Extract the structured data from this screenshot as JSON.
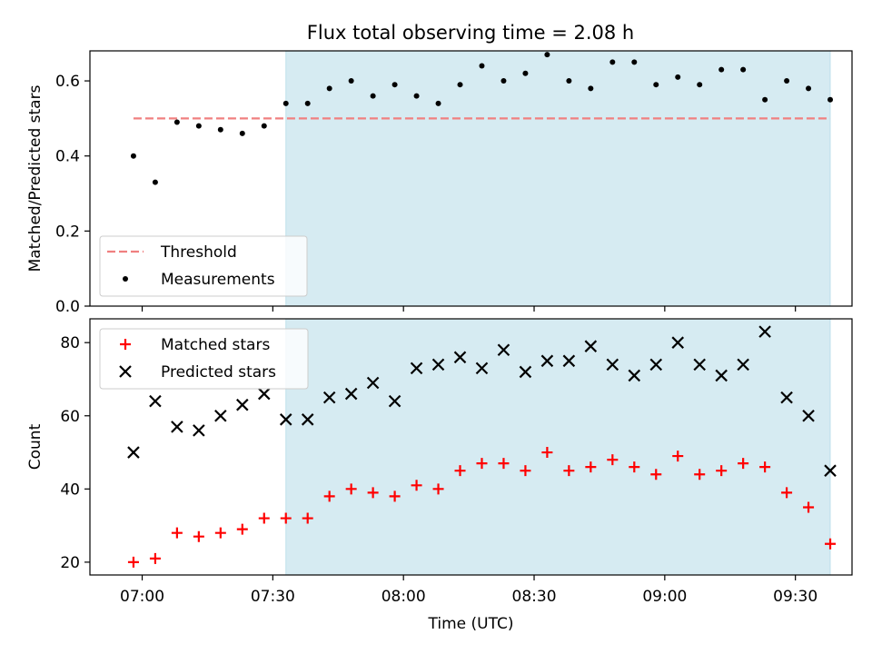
{
  "figure": {
    "title": "Flux total observing time = 2.08 h"
  },
  "colors": {
    "threshold": "#f08080",
    "measurements": "#000000",
    "matched": "#ff0000",
    "predicted": "#000000",
    "span": "#add8e6"
  },
  "chart_data": [
    {
      "type": "scatter",
      "title": "Flux total observing time = 2.08 h",
      "xlabel": "",
      "ylabel": "Matched/Predicted stars",
      "x_axis": "time (UTC)",
      "xlim": [
        "06:48",
        "09:43"
      ],
      "ylim": [
        0,
        0.68
      ],
      "yticks": [
        0.0,
        0.2,
        0.4,
        0.6
      ],
      "ytick_labels": [
        "0.0",
        "0.2",
        "0.4",
        "0.6"
      ],
      "grid": false,
      "legend_position": "lower-left",
      "shaded_span": {
        "start": "07:33",
        "end": "09:38"
      },
      "threshold": {
        "name": "Threshold",
        "value": 0.5,
        "x_range": [
          "06:58",
          "09:38"
        ],
        "style": "dashed"
      },
      "series": [
        {
          "name": "Measurements",
          "marker": "dot",
          "x": [
            "06:58",
            "07:03",
            "07:08",
            "07:13",
            "07:18",
            "07:23",
            "07:28",
            "07:33",
            "07:38",
            "07:43",
            "07:48",
            "07:53",
            "07:58",
            "08:03",
            "08:08",
            "08:13",
            "08:18",
            "08:23",
            "08:28",
            "08:33",
            "08:38",
            "08:43",
            "08:48",
            "08:53",
            "08:58",
            "09:03",
            "09:08",
            "09:13",
            "09:18",
            "09:23",
            "09:28",
            "09:33",
            "09:38"
          ],
          "values": [
            0.4,
            0.33,
            0.49,
            0.48,
            0.47,
            0.46,
            0.48,
            0.54,
            0.54,
            0.58,
            0.6,
            0.56,
            0.59,
            0.56,
            0.54,
            0.59,
            0.64,
            0.6,
            0.62,
            0.67,
            0.6,
            0.58,
            0.65,
            0.65,
            0.59,
            0.61,
            0.59,
            0.63,
            0.63,
            0.55,
            0.6,
            0.58,
            0.55
          ]
        }
      ]
    },
    {
      "type": "scatter",
      "title": "",
      "xlabel": "Time (UTC)",
      "ylabel": "Count",
      "xlim": [
        "06:48",
        "09:43"
      ],
      "xticks": [
        "07:00",
        "07:30",
        "08:00",
        "08:30",
        "09:00",
        "09:30"
      ],
      "ylim": [
        16.5,
        86.5
      ],
      "yticks": [
        20,
        40,
        60,
        80
      ],
      "grid": false,
      "legend_position": "top-left",
      "shaded_span": {
        "start": "07:33",
        "end": "09:38"
      },
      "series": [
        {
          "name": "Matched stars",
          "marker": "plus",
          "x": [
            "06:58",
            "07:03",
            "07:08",
            "07:13",
            "07:18",
            "07:23",
            "07:28",
            "07:33",
            "07:38",
            "07:43",
            "07:48",
            "07:53",
            "07:58",
            "08:03",
            "08:08",
            "08:13",
            "08:18",
            "08:23",
            "08:28",
            "08:33",
            "08:38",
            "08:43",
            "08:48",
            "08:53",
            "08:58",
            "09:03",
            "09:08",
            "09:13",
            "09:18",
            "09:23",
            "09:28",
            "09:33",
            "09:38"
          ],
          "values": [
            20,
            21,
            28,
            27,
            28,
            29,
            32,
            32,
            32,
            38,
            40,
            39,
            38,
            41,
            40,
            45,
            47,
            47,
            45,
            50,
            45,
            46,
            48,
            46,
            44,
            49,
            44,
            45,
            47,
            46,
            39,
            35,
            25
          ]
        },
        {
          "name": "Predicted stars",
          "marker": "x",
          "x": [
            "06:58",
            "07:03",
            "07:08",
            "07:13",
            "07:18",
            "07:23",
            "07:28",
            "07:33",
            "07:38",
            "07:43",
            "07:48",
            "07:53",
            "07:58",
            "08:03",
            "08:08",
            "08:13",
            "08:18",
            "08:23",
            "08:28",
            "08:33",
            "08:38",
            "08:43",
            "08:48",
            "08:53",
            "08:58",
            "09:03",
            "09:08",
            "09:13",
            "09:18",
            "09:23",
            "09:28",
            "09:33",
            "09:38"
          ],
          "values": [
            50,
            64,
            57,
            56,
            60,
            63,
            66,
            59,
            59,
            65,
            66,
            69,
            64,
            73,
            74,
            76,
            73,
            78,
            72,
            75,
            75,
            79,
            74,
            71,
            74,
            80,
            74,
            71,
            74,
            83,
            65,
            60,
            45
          ]
        }
      ]
    }
  ]
}
